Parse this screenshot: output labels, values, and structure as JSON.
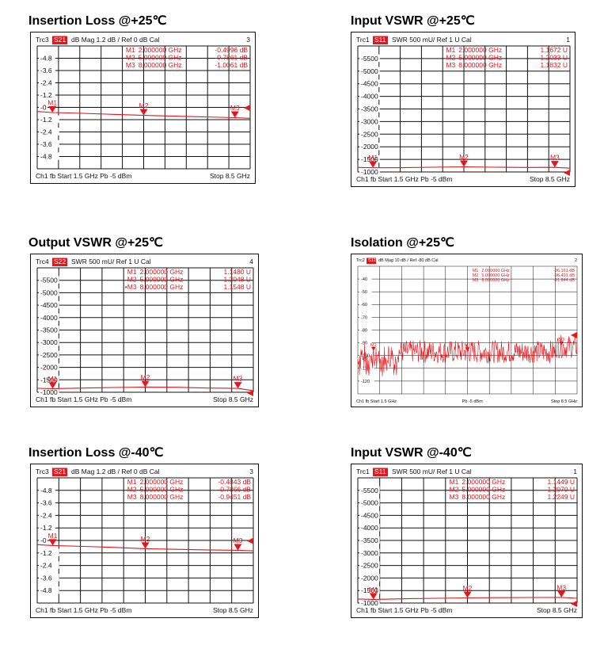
{
  "chart_data": [
    {
      "type": "line",
      "title": "Insertion Loss @+25℃",
      "header": {
        "trace": "Trc3",
        "param": "S21",
        "format": "dB Mag",
        "scale": "1.2 dB /",
        "ref": "Ref 0 dB",
        "cal": "Cal",
        "num": "3"
      },
      "ylabels": [
        "4.8",
        "3.6",
        "2.4",
        "1.2",
        "0",
        "-1.2",
        "-2.4",
        "-3.6",
        "-4.8"
      ],
      "ylim": [
        -6,
        6
      ],
      "x_range_ghz": [
        1.5,
        8.5
      ],
      "series": [
        {
          "x": [
            1.5,
            2,
            3,
            4,
            5,
            6,
            7,
            8,
            8.5
          ],
          "y": [
            -0.4,
            -0.5,
            -0.58,
            -0.68,
            -0.78,
            -0.86,
            -0.93,
            -1.01,
            -1.07
          ]
        }
      ],
      "markers": [
        {
          "label": "M1",
          "freq": "2.000000 GHz",
          "value": "-0.4996 dB",
          "x": 2,
          "y": -0.4996
        },
        {
          "label": "M2",
          "freq": "5.000000 GHz",
          "value": "-0.7861 dB",
          "x": 5,
          "y": -0.7861
        },
        {
          "label": "M3",
          "freq": "8.000000 GHz",
          "value": "-1.0061 dB",
          "x": 8,
          "y": -1.0061
        }
      ],
      "footer": {
        "left": "Ch1  fb  Start  1.5 GHz   Pb   -5 dBm",
        "right": "Stop  8.5 GHz"
      }
    },
    {
      "type": "line",
      "title": "Input VSWR @+25℃",
      "header": {
        "trace": "Trc1",
        "param": "S11",
        "format": "SWR",
        "scale": "500 mU/",
        "ref": "Ref 1 U",
        "cal": "Cal",
        "num": "1"
      },
      "ylabels": [
        "5500",
        "5000",
        "4500",
        "4000",
        "3500",
        "3000",
        "2500",
        "2000",
        "1500",
        "1000"
      ],
      "ylim": [
        1,
        6
      ],
      "x_range_ghz": [
        1.5,
        8.5
      ],
      "series": [
        {
          "x": [
            1.5,
            2,
            3,
            4,
            5,
            6,
            7,
            8,
            8.5
          ],
          "y": [
            1.18,
            1.167,
            1.17,
            1.19,
            1.203,
            1.19,
            1.18,
            1.183,
            1.15
          ]
        }
      ],
      "markers": [
        {
          "label": "M1",
          "freq": "2.000000 GHz",
          "value": "1.1672 U",
          "x": 2,
          "y": 1.1672
        },
        {
          "label": "M2",
          "freq": "5.000000 GHz",
          "value": "1.2033 U",
          "x": 5,
          "y": 1.2033
        },
        {
          "label": "M3",
          "freq": "8.000000 GHz",
          "value": "1.1832 U",
          "x": 8,
          "y": 1.1832
        }
      ],
      "footer": {
        "left": "Ch1  fb  Start  1.5 GHz   Pb   -5 dBm",
        "right": "Stop  8.5 GHz"
      }
    },
    {
      "type": "line",
      "title": "Output VSWR @+25℃",
      "header": {
        "trace": "Trc4",
        "param": "S22",
        "format": "SWR",
        "scale": "500 mU/",
        "ref": "Ref 1 U",
        "cal": "Cal",
        "num": "4"
      },
      "ylabels": [
        "5500",
        "5000",
        "4500",
        "4000",
        "3500",
        "3000",
        "2500",
        "2000",
        "1500",
        "1000"
      ],
      "ylim": [
        1,
        6
      ],
      "x_range_ghz": [
        1.5,
        8.5
      ],
      "series": [
        {
          "x": [
            1.5,
            2,
            3,
            4,
            5,
            6,
            7,
            8,
            8.5
          ],
          "y": [
            1.16,
            1.148,
            1.17,
            1.19,
            1.205,
            1.2,
            1.17,
            1.155,
            1.06
          ]
        }
      ],
      "markers": [
        {
          "label": "M1",
          "freq": "2.000000 GHz",
          "value": "1.1480 U",
          "x": 2,
          "y": 1.148
        },
        {
          "label": "M2",
          "freq": "5.000000 GHz",
          "value": "1.2048 U",
          "x": 5,
          "y": 1.2048
        },
        {
          "label": "M3",
          "freq": "8.000000 GHz",
          "value": "1.1548 U",
          "x": 8,
          "y": 1.1548,
          "star": "•"
        }
      ],
      "footer": {
        "left": "Ch1  fb  Start  1.5 GHz   Pb   -5 dBm",
        "right": "Stop  8.5 GHz"
      }
    },
    {
      "type": "line",
      "title": "Isolation @+25℃",
      "header": {
        "trace": "Trc2",
        "param": "S12",
        "format": "dB Mag",
        "scale": "10 dB /",
        "ref": "Ref -80 dB",
        "cal": "Cal",
        "num": "2"
      },
      "ylabels": [
        "-40",
        "-50",
        "-60",
        "-70",
        "-80",
        "-90",
        "-100",
        "-110",
        "-120"
      ],
      "ylim": [
        -130,
        -30
      ],
      "x_range_ghz": [
        1.5,
        8.5
      ],
      "noise": {
        "mean": -97,
        "spread": 9,
        "seed": 7,
        "count": 420
      },
      "markers": [
        {
          "label": "M1",
          "freq": "2.000000 GHz",
          "value": "-96.161 dB",
          "x": 2,
          "y": -96.161
        },
        {
          "label": "M2",
          "freq": "5.000000 GHz",
          "value": "-96.491 dB",
          "x": 5,
          "y": -96.491
        },
        {
          "label": "M3",
          "freq": "8.000000 GHz",
          "value": "-91.844 dB",
          "x": 8,
          "y": -91.844
        }
      ],
      "footer": {
        "left": "Ch1  fb  Start  1.5 GHz",
        "mid": "Pb  -5 dBm",
        "right": "Stop  8.5 GHz"
      }
    },
    {
      "type": "line",
      "title": "Insertion Loss @-40℃",
      "header": {
        "trace": "Trc3",
        "param": "S21",
        "format": "dB Mag",
        "scale": "1.2 dB /",
        "ref": "Ref 0 dB",
        "cal": "Cal",
        "num": "3"
      },
      "ylabels": [
        "4.8",
        "3.6",
        "2.4",
        "1.2",
        "0",
        "-1.2",
        "-2.4",
        "-3.6",
        "-4.8"
      ],
      "ylim": [
        -6,
        6
      ],
      "x_range_ghz": [
        1.5,
        8.5
      ],
      "series": [
        {
          "x": [
            1.5,
            2,
            3,
            4,
            5,
            6,
            7,
            8,
            8.5
          ],
          "y": [
            -0.4,
            -0.484,
            -0.57,
            -0.67,
            -0.787,
            -0.85,
            -0.9,
            -0.945,
            -1.0
          ]
        }
      ],
      "markers": [
        {
          "label": "M1",
          "freq": "2.000000 GHz",
          "value": "-0.4843 dB",
          "x": 2,
          "y": -0.4843
        },
        {
          "label": "M2",
          "freq": "5.000000 GHz",
          "value": "-0.7866 dB",
          "x": 5,
          "y": -0.7866
        },
        {
          "label": "M3",
          "freq": "8.000000 GHz",
          "value": "-0.9451 dB",
          "x": 8,
          "y": -0.9451
        }
      ],
      "footer": {
        "left": "Ch1  fb  Start  1.5 GHz   Pb   -5 dBm",
        "right": "Stop  8.5 GHz"
      }
    },
    {
      "type": "line",
      "title": "Input VSWR @-40℃",
      "header": {
        "trace": "Trc1",
        "param": "S11",
        "format": "SWR",
        "scale": "500 mU/",
        "ref": "Ref 1 U",
        "cal": "Cal",
        "num": "1"
      },
      "ylabels": [
        "5500",
        "5000",
        "4500",
        "4000",
        "3500",
        "3000",
        "2500",
        "2000",
        "1500",
        "1000"
      ],
      "ylim": [
        1,
        6
      ],
      "x_range_ghz": [
        1.5,
        8.5
      ],
      "series": [
        {
          "x": [
            1.5,
            2,
            3,
            4,
            5,
            6,
            7,
            8,
            8.5
          ],
          "y": [
            1.16,
            1.145,
            1.17,
            1.19,
            1.207,
            1.215,
            1.22,
            1.225,
            1.19
          ]
        }
      ],
      "markers": [
        {
          "label": "M1",
          "freq": "2.000000 GHz",
          "value": "1.1449 U",
          "x": 2,
          "y": 1.1449
        },
        {
          "label": "M2",
          "freq": "5.000000 GHz",
          "value": "1.2070 U",
          "x": 5,
          "y": 1.207
        },
        {
          "label": "M3",
          "freq": "8.000000 GHz",
          "value": "1.2249 U",
          "x": 8,
          "y": 1.2249
        }
      ],
      "footer": {
        "left": "Ch1  fb  Start  1.5 GHz   Pb   -5 dBm",
        "right": "Stop  8.5 GHz"
      }
    }
  ],
  "colors": {
    "trace": "#e8141b",
    "grid": "#111111",
    "text": "#111111",
    "badge": "#e8141b"
  }
}
